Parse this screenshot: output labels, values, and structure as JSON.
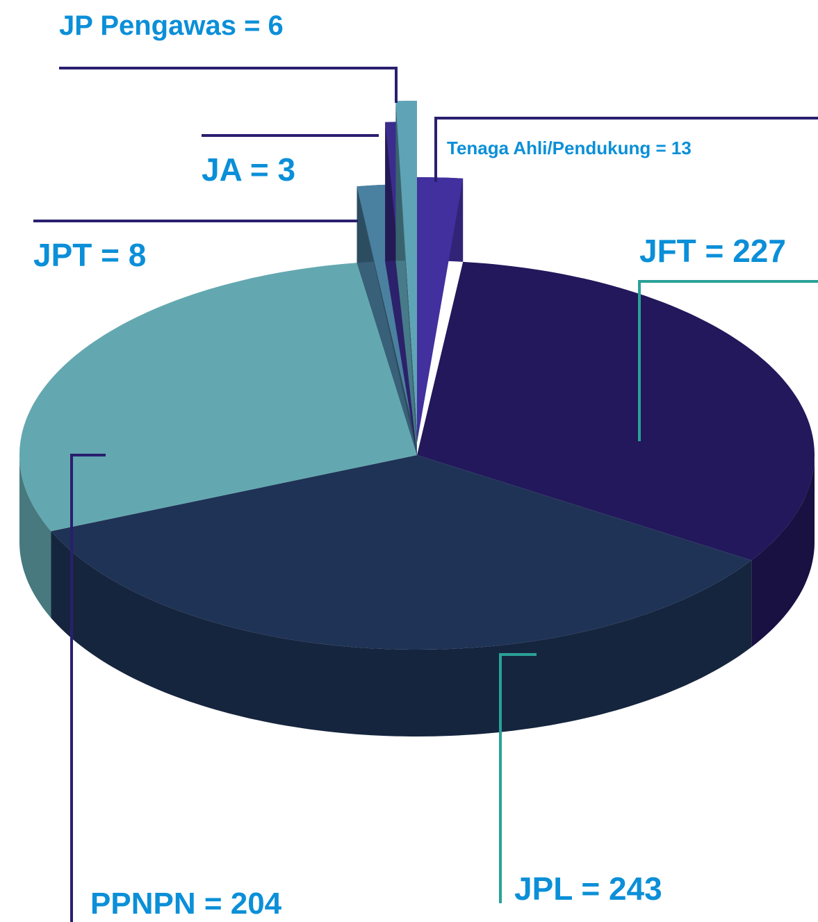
{
  "chart_data": {
    "type": "pie3d",
    "values": [
      13,
      227,
      243,
      204,
      8,
      3,
      6
    ],
    "value_labels": [
      "Tenaga Ahli/Pendukung = 13",
      "JFT = 227",
      "JPL = 243",
      "PPNPN = 204",
      "JPT = 8",
      "JA = 3",
      "JP Pengawas = 6"
    ],
    "colors": [
      "#41309e",
      "#22185b",
      "#1f3356",
      "#63a8b0",
      "#4a80a0",
      "#3b2c8e",
      "#5ea4b6"
    ]
  }
}
